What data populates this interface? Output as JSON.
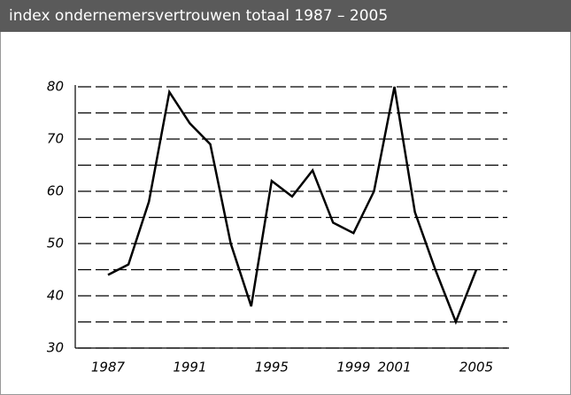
{
  "chart_data": {
    "type": "line",
    "title": "index ondernemersvertrouwen totaal 1987 – 2005",
    "x": [
      1987,
      1988,
      1989,
      1990,
      1991,
      1992,
      1993,
      1994,
      1995,
      1996,
      1997,
      1998,
      1999,
      2000,
      2001,
      2002,
      2003,
      2004,
      2005
    ],
    "values": [
      44,
      46,
      58,
      79,
      73,
      69,
      50,
      38,
      62,
      59,
      64,
      54,
      52,
      60,
      80,
      56,
      45,
      35,
      45
    ],
    "color": "#000000",
    "xlim": [
      1985.4,
      2006.6
    ],
    "xticks": [
      1987,
      1991,
      1995,
      1999,
      2001,
      2005
    ],
    "ylim": [
      30,
      80
    ],
    "yticks": [
      30,
      40,
      50,
      60,
      70,
      80
    ],
    "minor_yticks": [
      35,
      45,
      55,
      65,
      75
    ],
    "grid": true
  }
}
